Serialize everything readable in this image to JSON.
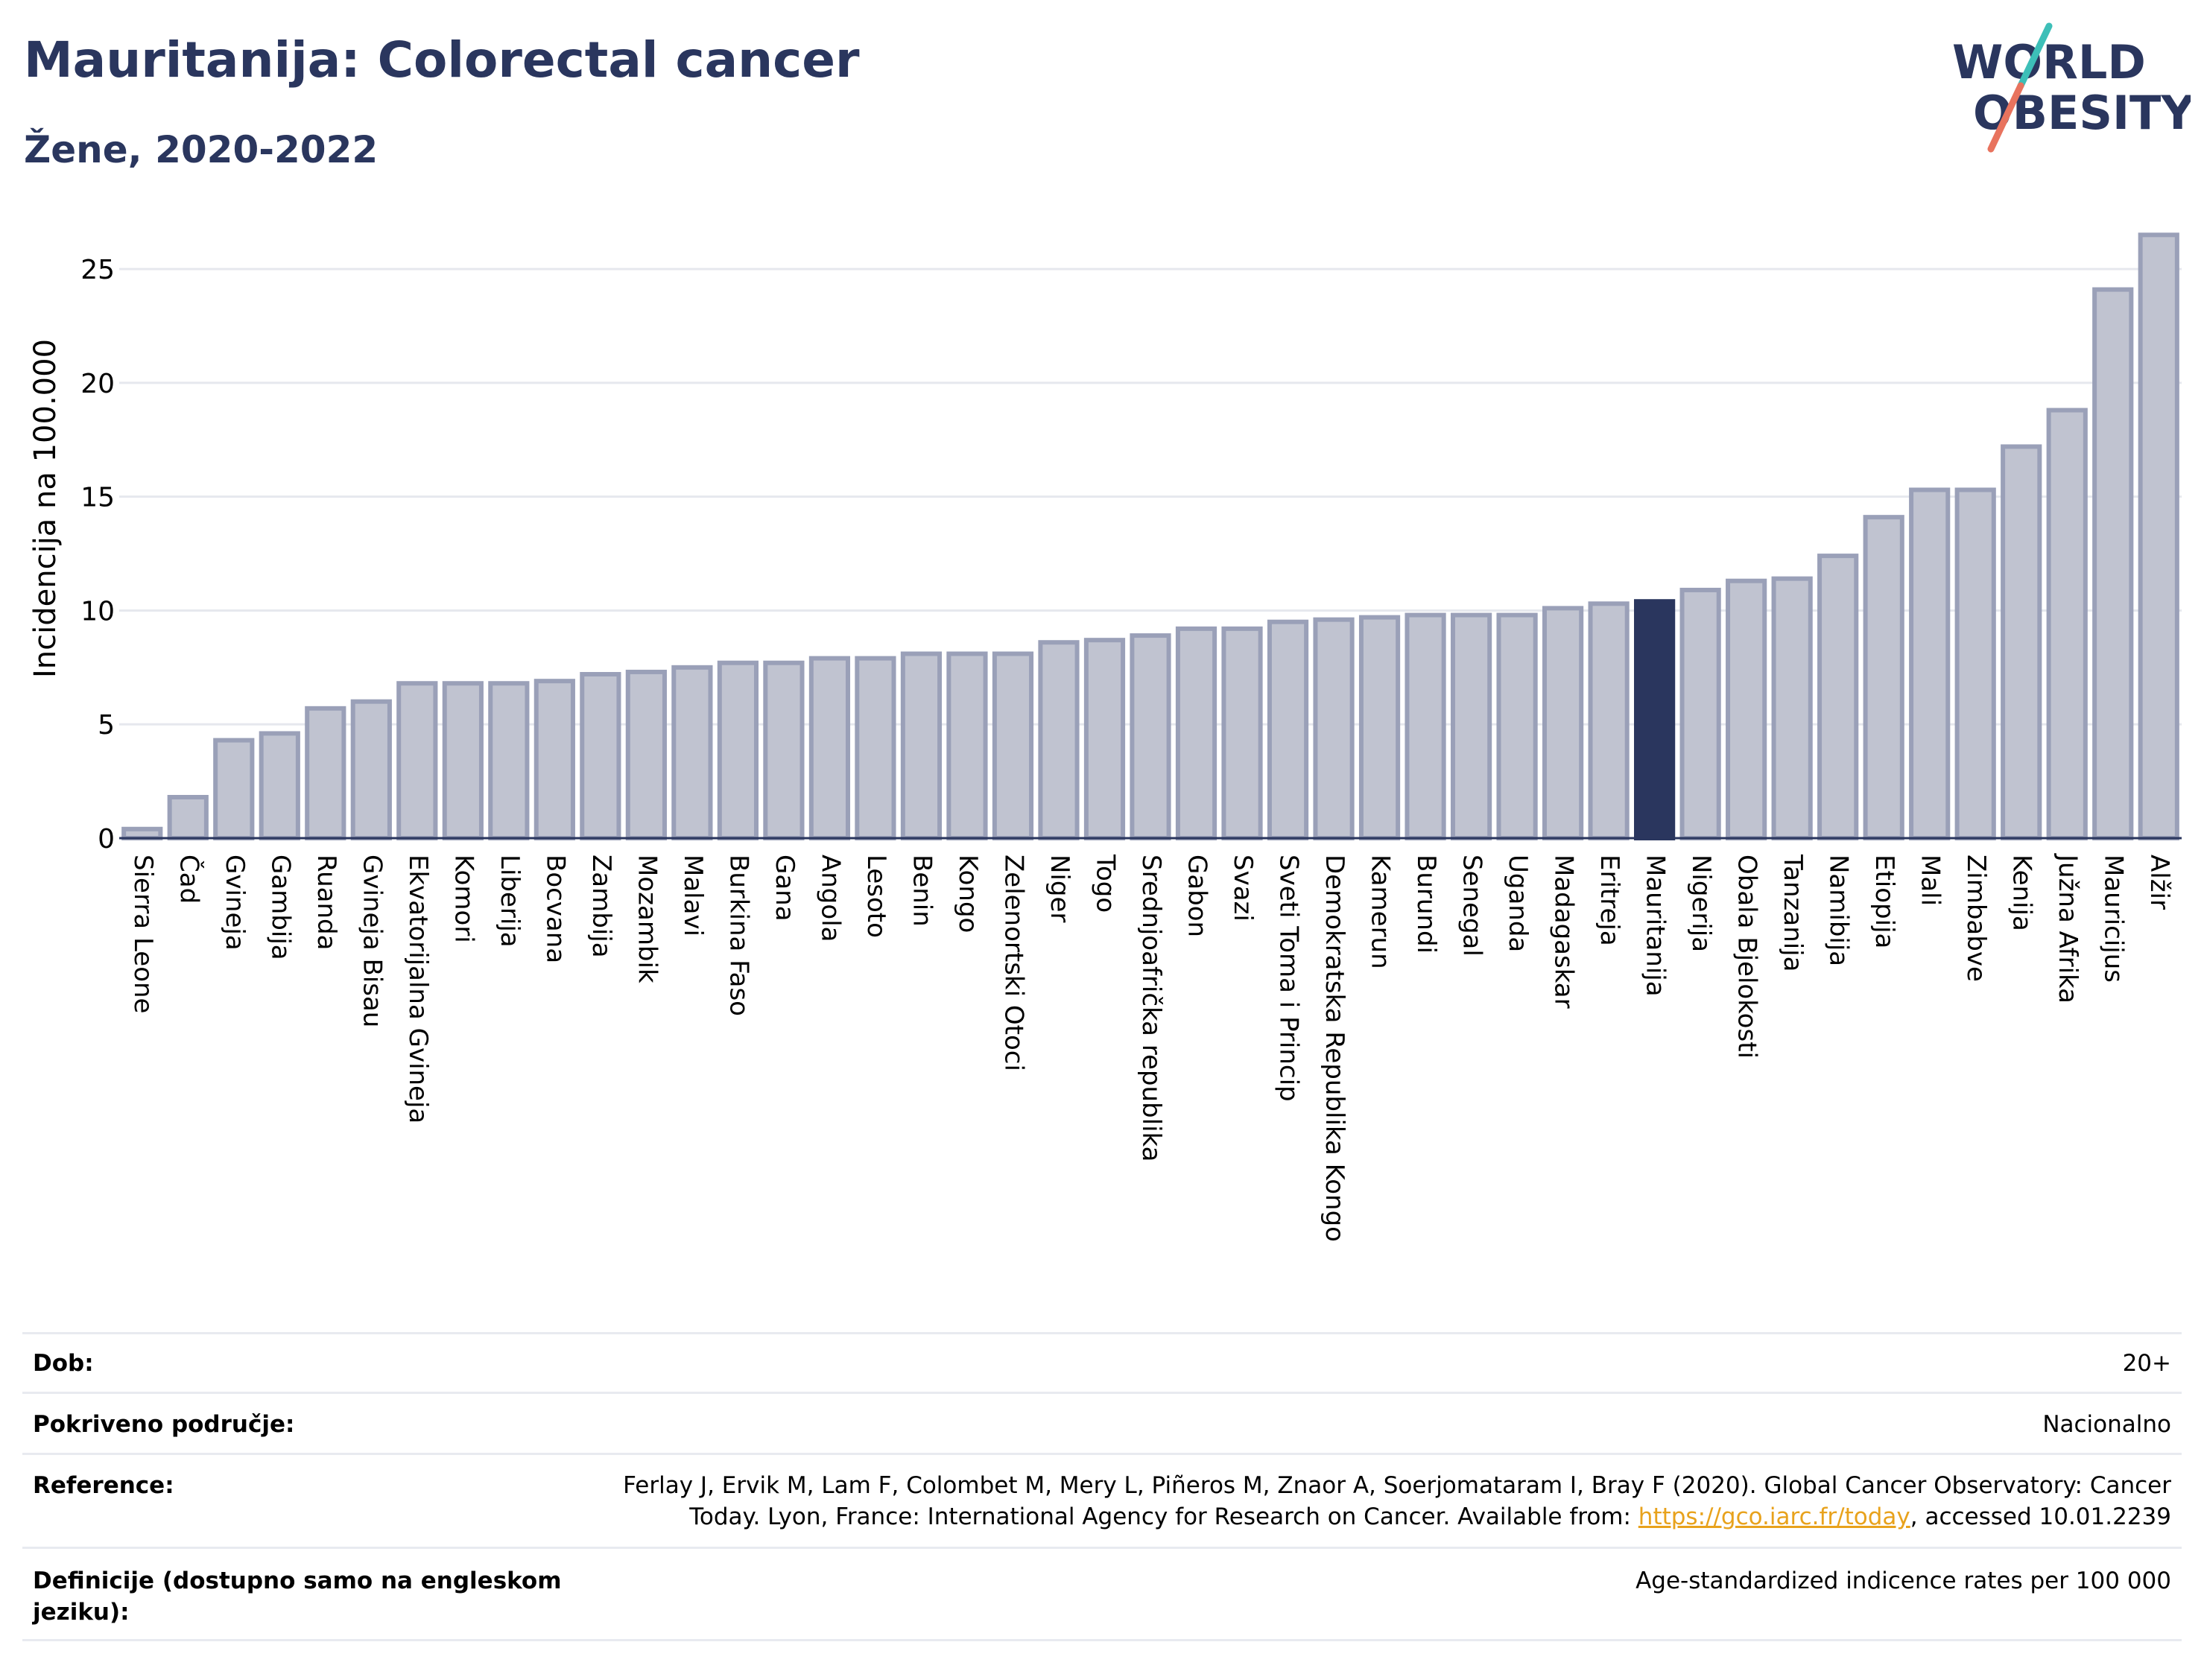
{
  "title": "Mauritanija: Colorectal cancer",
  "subtitle": "Žene, 2020-2022",
  "logo": {
    "line1": "WORLD",
    "line2": "OBESITY"
  },
  "colors": {
    "bar": "#c0c3d0",
    "bar_stroke": "#9aa0b8",
    "highlight": "#2a365e",
    "text": "#2a365e",
    "logo_slash_teal": "#3dbfb8",
    "logo_slash_red": "#e8735e"
  },
  "chart_data": {
    "type": "bar",
    "ylabel": "Incidencija na 100.000",
    "xlabel": "",
    "ylim": [
      0,
      27
    ],
    "yticks": [
      0,
      5,
      10,
      15,
      20,
      25
    ],
    "grid": true,
    "highlight": "Mauritanija",
    "categories": [
      "Sierra Leone",
      "Čad",
      "Gvineja",
      "Gambija",
      "Ruanda",
      "Gvineja Bisau",
      "Ekvatorijalna Gvineja",
      "Komori",
      "Liberija",
      "Bocvana",
      "Zambija",
      "Mozambik",
      "Malavi",
      "Burkina Faso",
      "Gana",
      "Angola",
      "Lesoto",
      "Benin",
      "Kongo",
      "Zelenortski Otoci",
      "Niger",
      "Togo",
      "Srednjoafrička republika",
      "Gabon",
      "Svazi",
      "Sveti Toma i Princip",
      "Demokratska Republika Kongo",
      "Kamerun",
      "Burundi",
      "Senegal",
      "Uganda",
      "Madagaskar",
      "Eritreja",
      "Mauritanija",
      "Nigerija",
      "Obala Bjelokosti",
      "Tanzanija",
      "Namibija",
      "Etiopija",
      "Mali",
      "Zimbabve",
      "Kenija",
      "Južna Afrika",
      "Mauricijus",
      "Alžir"
    ],
    "values": [
      0.4,
      1.8,
      4.3,
      4.6,
      5.7,
      6.0,
      6.8,
      6.8,
      6.8,
      6.9,
      7.2,
      7.3,
      7.5,
      7.7,
      7.7,
      7.9,
      7.9,
      8.1,
      8.1,
      8.1,
      8.6,
      8.7,
      8.9,
      9.2,
      9.2,
      9.5,
      9.6,
      9.7,
      9.8,
      9.8,
      9.8,
      10.1,
      10.3,
      10.4,
      10.9,
      11.3,
      11.4,
      12.4,
      14.1,
      15.3,
      15.3,
      17.2,
      18.8,
      24.1,
      26.5
    ]
  },
  "meta": {
    "age_label": "Dob:",
    "age_value": "20+",
    "coverage_label": "Pokriveno područje:",
    "coverage_value": "Nacionalno",
    "reference_label": "Reference:",
    "reference_text_1": "Ferlay J, Ervik M, Lam F, Colombet M, Mery L, Piñeros M, Znaor A, Soerjomataram I, Bray F (2020). Global Cancer Observatory: Cancer Today. Lyon, France: International Agency for Research on Cancer. Available from: ",
    "reference_link": "https://gco.iarc.fr/today",
    "reference_text_2": ", accessed 10.01.2239",
    "definition_label": "Definicije (dostupno samo na engleskom jeziku):",
    "definition_value": "Age-standardized indicence rates per 100 000"
  }
}
